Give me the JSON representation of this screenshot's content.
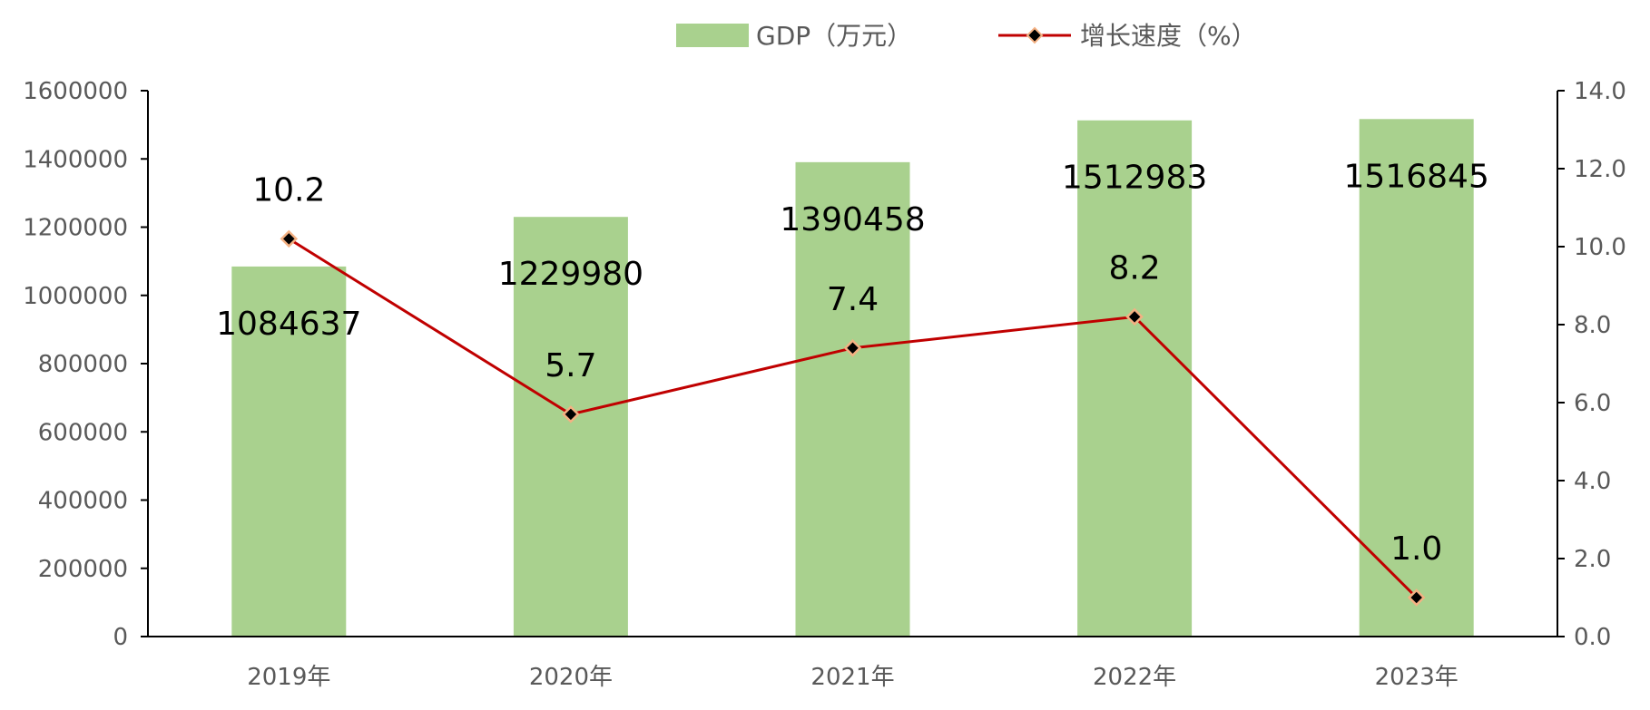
{
  "chart_data": {
    "type": "bar+line",
    "categories": [
      "2019年",
      "2020年",
      "2021年",
      "2022年",
      "2023年"
    ],
    "series": [
      {
        "name": "GDP（万元）",
        "type": "bar",
        "axis": "left",
        "values": [
          1084637,
          1229980,
          1390458,
          1512983,
          1516845
        ],
        "labels": [
          "1084637",
          "1229980",
          "1390458",
          "1512983",
          "1516845"
        ]
      },
      {
        "name": "增长速度（%）",
        "type": "line",
        "axis": "right",
        "values": [
          10.2,
          5.7,
          7.4,
          8.2,
          1.0
        ],
        "labels": [
          "10.2",
          "5.7",
          "7.4",
          "8.2",
          "1.0"
        ]
      }
    ],
    "y_left": {
      "ylim": [
        0,
        1600000
      ],
      "ticks": [
        "0",
        "200000",
        "400000",
        "600000",
        "800000",
        "1000000",
        "1200000",
        "1400000",
        "1600000"
      ]
    },
    "y_right": {
      "ylim": [
        0,
        14
      ],
      "ticks": [
        "0.0",
        "2.0",
        "4.0",
        "6.0",
        "8.0",
        "10.0",
        "12.0",
        "14.0"
      ]
    },
    "legend": {
      "position": "top-center"
    },
    "grid": false,
    "colors": {
      "bar": "#a9d18e",
      "line": "#c00000",
      "marker_fill": "#000000",
      "marker_edge": "#f4b183"
    }
  }
}
